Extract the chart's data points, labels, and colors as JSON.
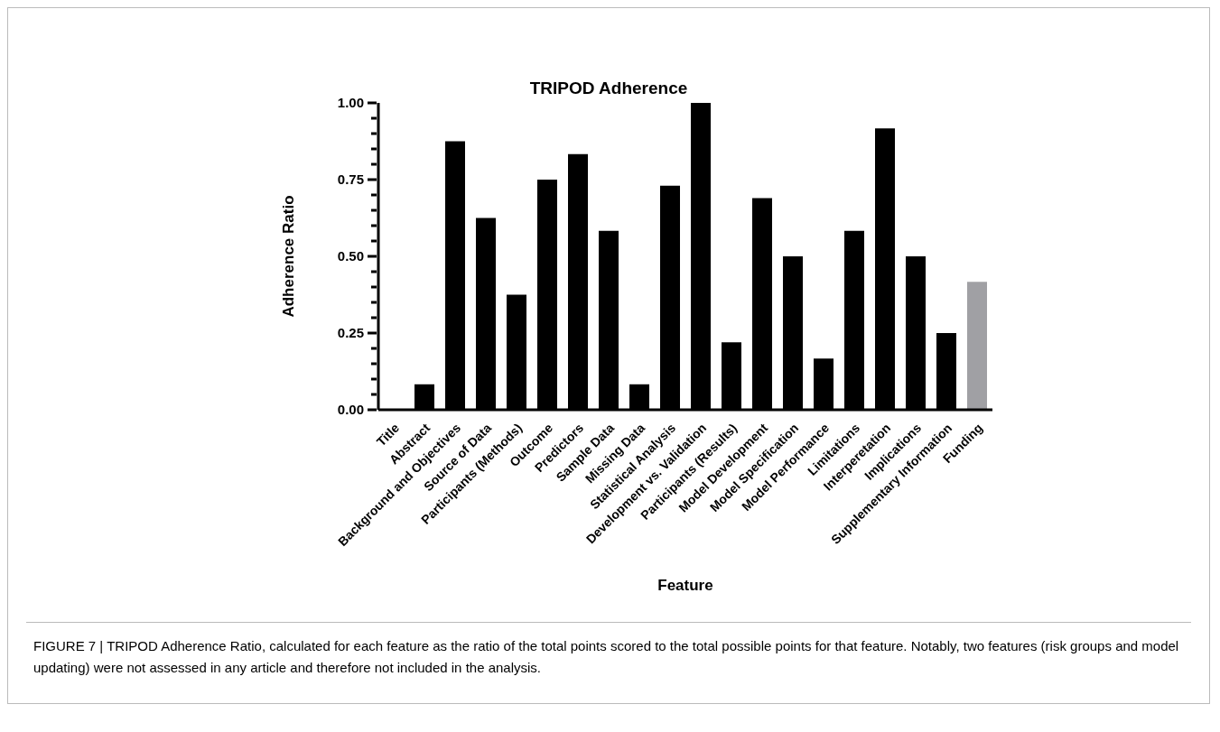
{
  "chart_data": {
    "type": "bar",
    "title": "TRIPOD Adherence",
    "xlabel": "Feature",
    "ylabel": "Adherence Ratio",
    "categories": [
      "Title",
      "Abstract",
      "Background and Objectives",
      "Source of Data",
      "Participants (Methods)",
      "Outcome",
      "Predictors",
      "Sample Data",
      "Missing Data",
      "Statistical Analysis",
      "Development vs. Validation",
      "Participants (Results)",
      "Model Development",
      "Model Specification",
      "Model Performance",
      "Limitations",
      "Interperetation",
      "Implications",
      "Supplementary Information",
      "Funding"
    ],
    "values": [
      0,
      0.083,
      0.875,
      0.625,
      0.375,
      0.75,
      0.833,
      0.583,
      0.083,
      0.73,
      1.0,
      0.22,
      0.69,
      0.5,
      0.167,
      0.583,
      0.917,
      0.5,
      0.25,
      0.417
    ],
    "colors": [
      "#000000",
      "#000000",
      "#000000",
      "#000000",
      "#000000",
      "#000000",
      "#000000",
      "#000000",
      "#000000",
      "#000000",
      "#000000",
      "#000000",
      "#000000",
      "#000000",
      "#000000",
      "#000000",
      "#000000",
      "#000000",
      "#000000",
      "#a0a0a4"
    ],
    "ylim": [
      0,
      1
    ],
    "yticks": [
      {
        "value": 0,
        "label": "0.00"
      },
      {
        "value": 0.05,
        "label": null
      },
      {
        "value": 0.1,
        "label": null
      },
      {
        "value": 0.15,
        "label": null
      },
      {
        "value": 0.2,
        "label": null
      },
      {
        "value": 0.25,
        "label": "0.25"
      },
      {
        "value": 0.3,
        "label": null
      },
      {
        "value": 0.35,
        "label": null
      },
      {
        "value": 0.4,
        "label": null
      },
      {
        "value": 0.45,
        "label": null
      },
      {
        "value": 0.5,
        "label": "0.50"
      },
      {
        "value": 0.55,
        "label": null
      },
      {
        "value": 0.6,
        "label": null
      },
      {
        "value": 0.65,
        "label": null
      },
      {
        "value": 0.7,
        "label": null
      },
      {
        "value": 0.75,
        "label": "0.75"
      },
      {
        "value": 0.8,
        "label": null
      },
      {
        "value": 0.85,
        "label": null
      },
      {
        "value": 0.9,
        "label": null
      },
      {
        "value": 0.95,
        "label": null
      },
      {
        "value": 1,
        "label": "1.00"
      }
    ],
    "grid": false,
    "legend": false,
    "annotations": [
      "FIGURE 7 | TRIPOD Adherence Ratio, calculated for each feature as the ratio of the total points scored to the total possible points for that feature. Notably, two features (risk groups and model updating) were not assessed in any article and therefore not included in the analysis."
    ]
  }
}
